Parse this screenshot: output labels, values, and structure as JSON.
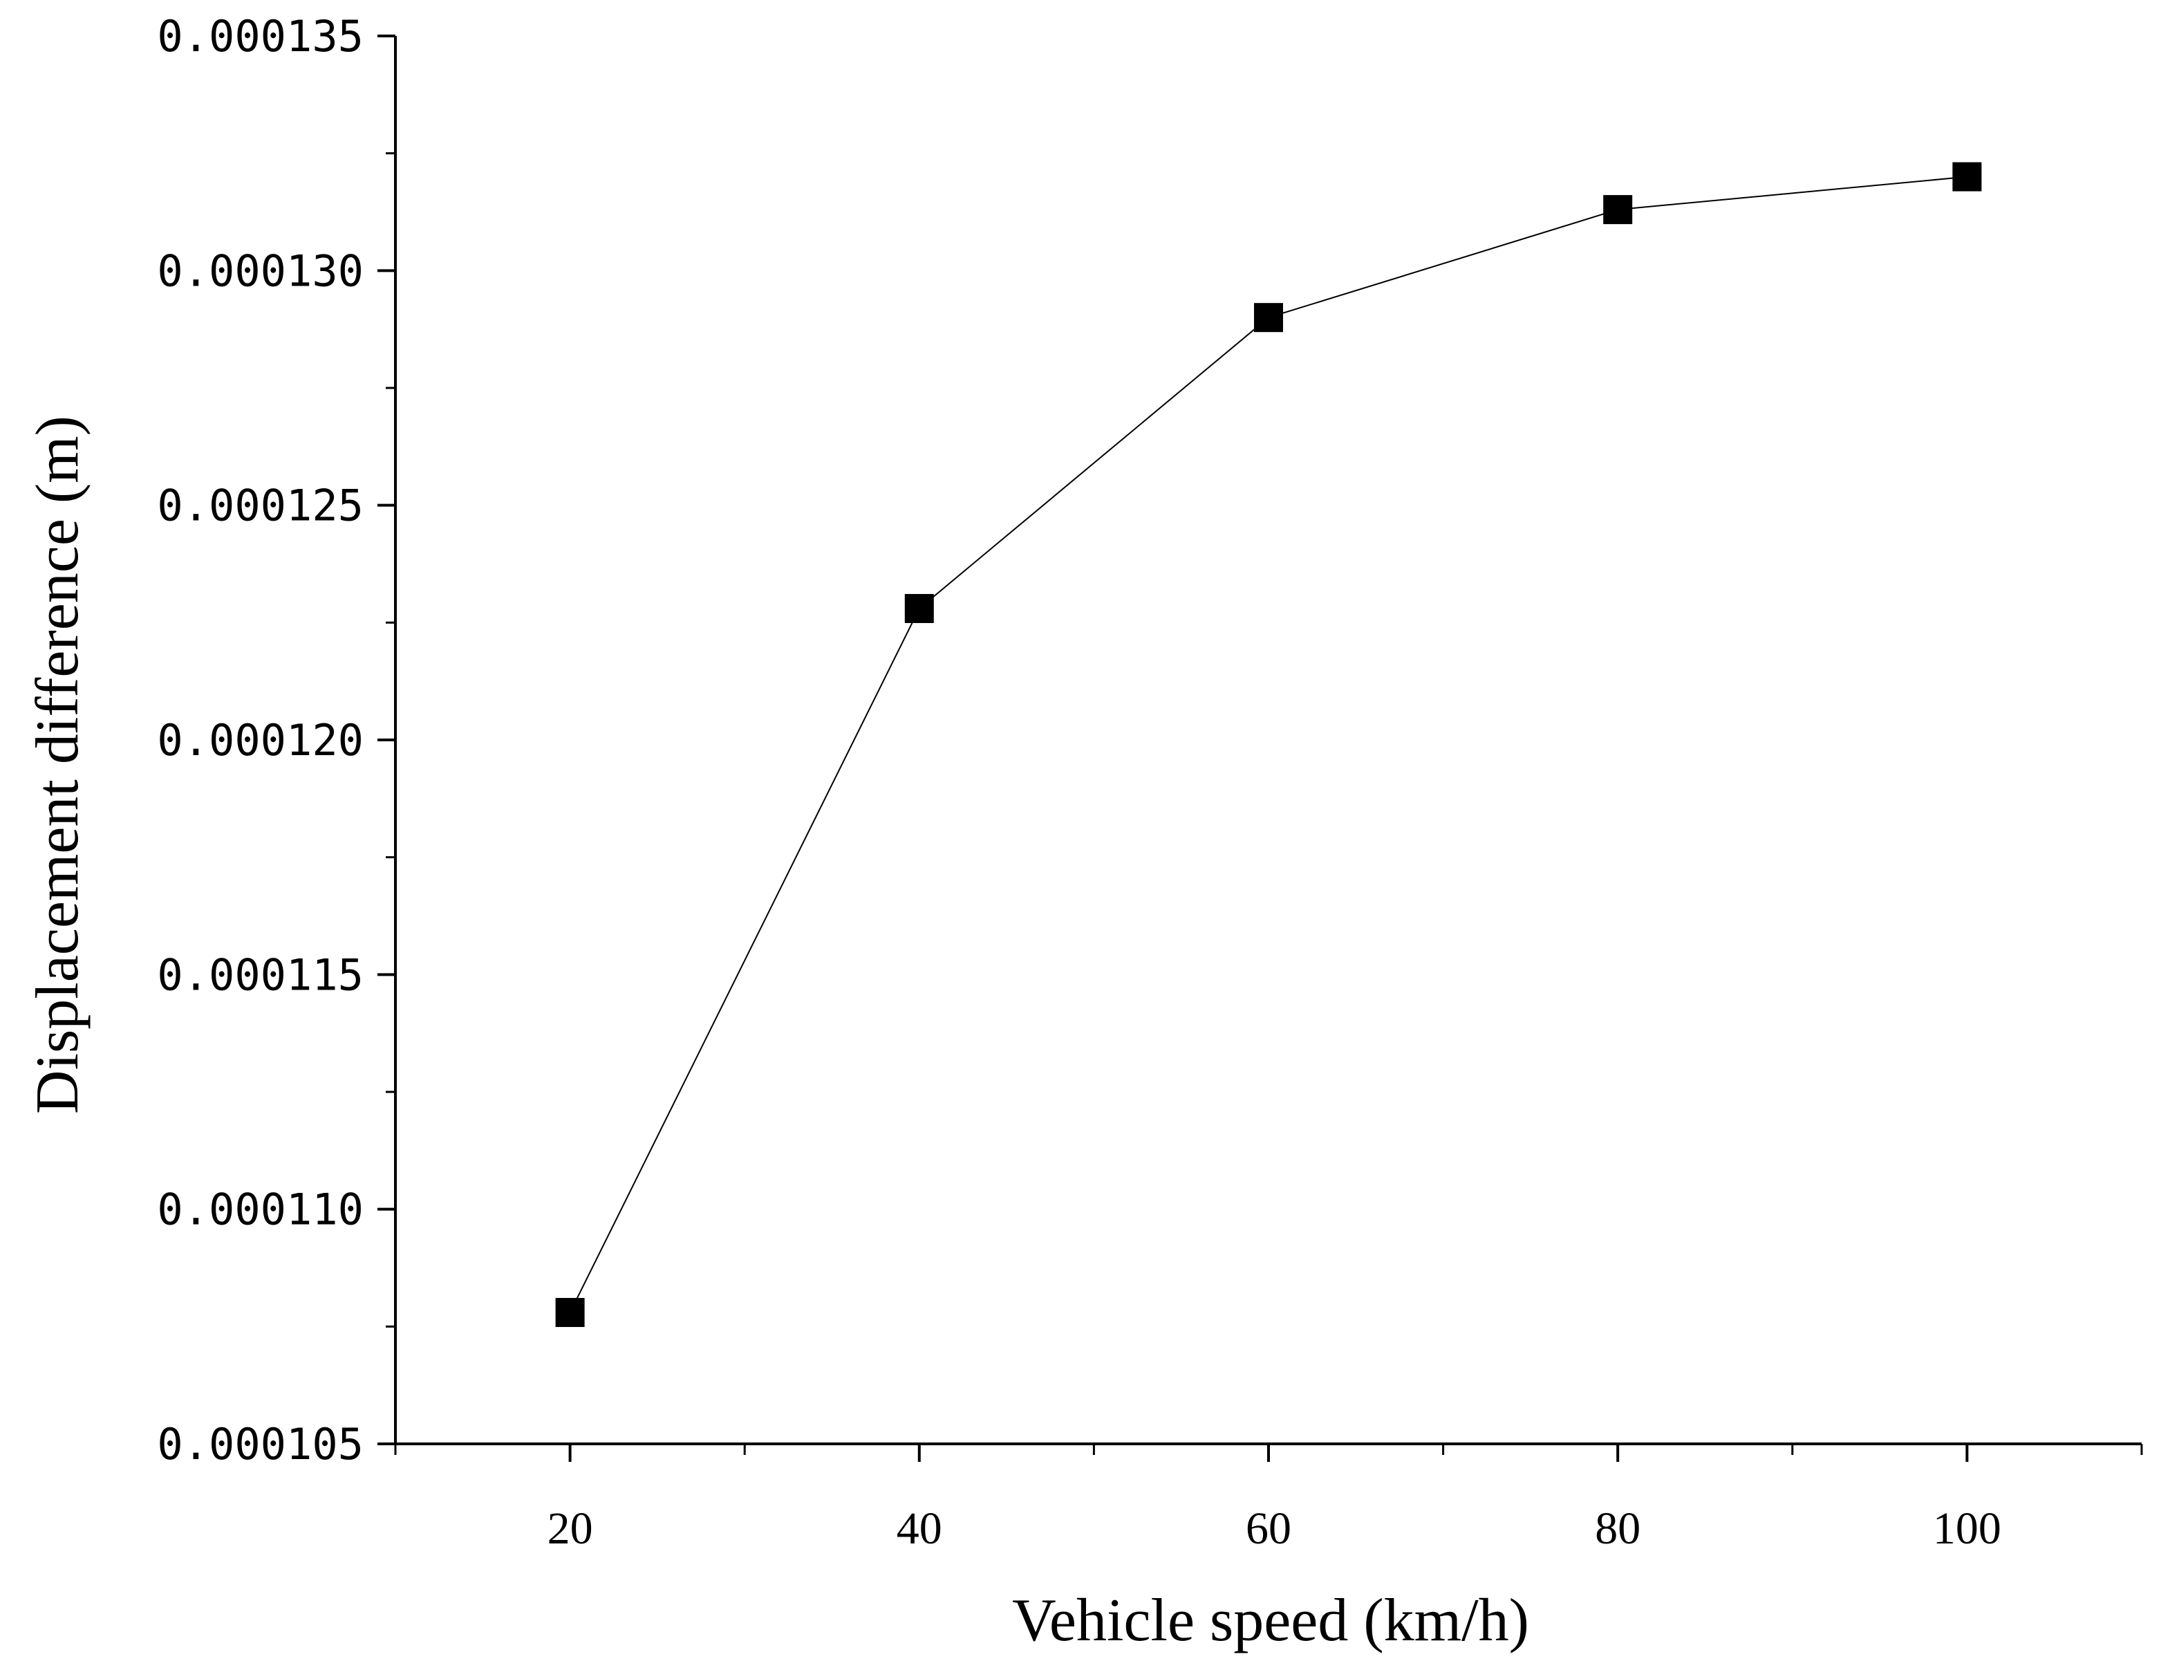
{
  "chart_data": {
    "type": "line",
    "title": "",
    "xlabel": "Vehicle speed (km/h)",
    "ylabel": "Displacement difference (m)",
    "xlim": [
      10,
      110
    ],
    "ylim": [
      0.000105,
      0.000135
    ],
    "x_ticks": [
      20,
      40,
      60,
      80,
      100
    ],
    "x_tick_labels": [
      "20",
      "40",
      "60",
      "80",
      "100"
    ],
    "y_ticks": [
      0.000105,
      0.00011,
      0.000115,
      0.00012,
      0.000125,
      0.00013,
      0.000135
    ],
    "y_tick_labels": [
      "0.000105",
      "0.000110",
      "0.000115",
      "0.000120",
      "0.000125",
      "0.000130",
      "0.000135"
    ],
    "grid": false,
    "series": [
      {
        "name": "Displacement difference",
        "marker": "square",
        "color": "#000000",
        "x": [
          20,
          40,
          60,
          80,
          100
        ],
        "y": [
          0.0001078,
          0.0001228,
          0.000129,
          0.0001313,
          0.000132
        ]
      }
    ]
  }
}
